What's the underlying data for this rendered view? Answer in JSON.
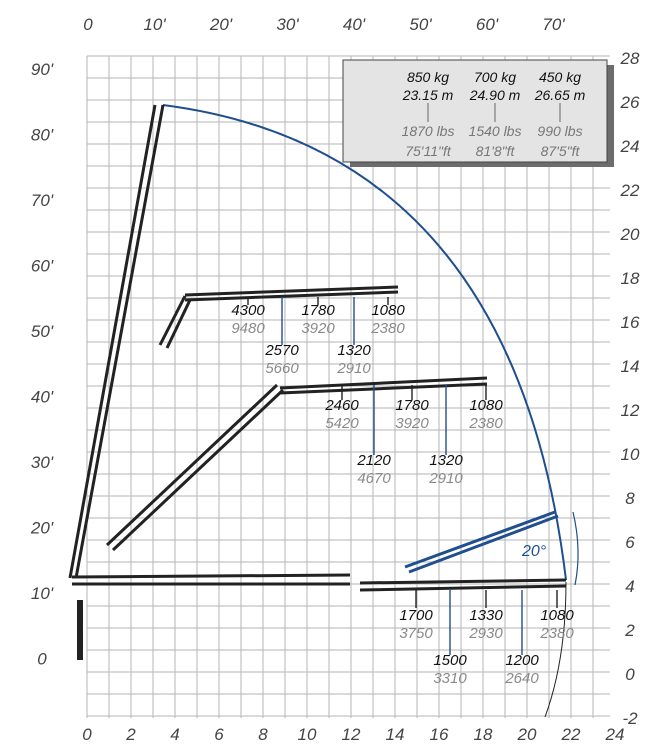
{
  "axes": {
    "bottom_m": [
      "0",
      "2",
      "4",
      "6",
      "8",
      "10",
      "12",
      "14",
      "16",
      "18",
      "20",
      "22",
      "24"
    ],
    "right_m": [
      "28",
      "26",
      "24",
      "22",
      "20",
      "18",
      "16",
      "14",
      "12",
      "10",
      "8",
      "6",
      "4",
      "2",
      "0",
      "-2"
    ],
    "top_ft": [
      "0",
      "10'",
      "20'",
      "30'",
      "40'",
      "50'",
      "60'",
      "70'"
    ],
    "left_ft": [
      "90'",
      "80'",
      "70'",
      "60'",
      "50'",
      "40'",
      "30'",
      "20'",
      "10'",
      "0"
    ]
  },
  "legend": {
    "rows": [
      {
        "kg": "850  kg",
        "m": "23.15  m",
        "lbs": "1870  lbs",
        "ft": "75'11\"ft"
      },
      {
        "kg": "700  kg",
        "m": "24.90  m",
        "lbs": "1540  lbs",
        "ft": "81'8\"ft"
      },
      {
        "kg": "450  kg",
        "m": "26.65  m",
        "lbs": "990  lbs",
        "ft": "87'5\"ft"
      }
    ]
  },
  "load_labels": [
    {
      "kg": "4300",
      "lbs": "9480"
    },
    {
      "kg": "1780",
      "lbs": "3920"
    },
    {
      "kg": "1080",
      "lbs": "2380"
    },
    {
      "kg": "2570",
      "lbs": "5660"
    },
    {
      "kg": "1320",
      "lbs": "2910"
    },
    {
      "kg": "2460",
      "lbs": "5420"
    },
    {
      "kg": "1780",
      "lbs": "3920"
    },
    {
      "kg": "1080",
      "lbs": "2380"
    },
    {
      "kg": "2120",
      "lbs": "4670"
    },
    {
      "kg": "1320",
      "lbs": "2910"
    },
    {
      "kg": "1700",
      "lbs": "3750"
    },
    {
      "kg": "1330",
      "lbs": "2930"
    },
    {
      "kg": "1080",
      "lbs": "2380"
    },
    {
      "kg": "1500",
      "lbs": "3310"
    },
    {
      "kg": "1200",
      "lbs": "2640"
    }
  ],
  "jib_angle": "20°",
  "colors": {
    "grid": "#b5b5b5",
    "boom": "#222222",
    "arc": "#1f4f8f",
    "jib": "#1f4f8f",
    "label_gray": "#8a8a8a",
    "legend_bg": "#e4e4e4"
  }
}
